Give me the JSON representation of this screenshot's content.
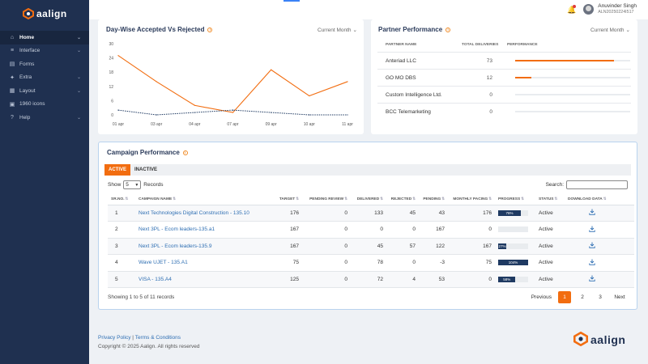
{
  "app": {
    "brand": "aalign"
  },
  "sidebar": {
    "items": [
      {
        "label": "Home",
        "icon": "home-icon",
        "chevron": true,
        "active": true
      },
      {
        "label": "Interface",
        "icon": "layers-icon",
        "chevron": true
      },
      {
        "label": "Forms",
        "icon": "form-icon",
        "chevron": false
      },
      {
        "label": "Extra",
        "icon": "extra-icon",
        "chevron": true
      },
      {
        "label": "Layout",
        "icon": "layout-icon",
        "chevron": true
      },
      {
        "label": "1960 icons",
        "icon": "grid-icon",
        "chevron": false
      },
      {
        "label": "Help",
        "icon": "help-icon",
        "chevron": true
      }
    ]
  },
  "user": {
    "name": "Anuvinder Singh",
    "id": "ALN20250224I517"
  },
  "dayChart": {
    "title": "Day-Wise Accepted Vs Rejected",
    "filter": "Current Month"
  },
  "partner": {
    "title": "Partner Performance",
    "filter": "Current Month",
    "headers": {
      "name": "PARTNER NAME",
      "deliveries": "TOTAL DELIVERIES",
      "performance": "PERFORMANCE"
    },
    "rows": [
      {
        "name": "Anteriad LLC",
        "deliveries": "73",
        "performance": 0.86
      },
      {
        "name": "GO MO DBS",
        "deliveries": "12",
        "performance": 0.14
      },
      {
        "name": "Custom Intelligence Ltd.",
        "deliveries": "0",
        "performance": 0
      },
      {
        "name": "BCC Telemarketing",
        "deliveries": "0",
        "performance": 0
      }
    ]
  },
  "campaign": {
    "title": "Campaign Performance",
    "tabs": [
      "ACTIVE",
      "INACTIVE"
    ],
    "show_label": "Show",
    "show_value": "5",
    "records_label": "Records",
    "search_label": "Search:",
    "headers": [
      "SR.NO.",
      "CAMPAIGN NAME",
      "TARGET",
      "PENDING REVIEW",
      "DELIVERED",
      "REJECTED",
      "PENDING",
      "MONTHLY PACING",
      "PROGRESS",
      "STATUS",
      "DOWNLOAD DATA"
    ],
    "rows": [
      {
        "sr": "1",
        "name": "Next Technologies Digital Construction - 135.10",
        "target": "176",
        "pending_review": "0",
        "delivered": "133",
        "rejected": "45",
        "pending": "43",
        "pacing": "176",
        "progress": 76,
        "progress_label": "76%",
        "status": "Active"
      },
      {
        "sr": "2",
        "name": "Next 3PL - Ecom leaders-135.a1",
        "target": "167",
        "pending_review": "0",
        "delivered": "0",
        "rejected": "0",
        "pending": "167",
        "pacing": "0",
        "progress": 0,
        "progress_label": "",
        "status": "Active"
      },
      {
        "sr": "3",
        "name": "Next 3PL - Ecom leaders-135.9",
        "target": "167",
        "pending_review": "0",
        "delivered": "45",
        "rejected": "57",
        "pending": "122",
        "pacing": "167",
        "progress": 27,
        "progress_label": "27%",
        "status": "Active"
      },
      {
        "sr": "4",
        "name": "Wave UJET - 135.A1",
        "target": "75",
        "pending_review": "0",
        "delivered": "78",
        "rejected": "0",
        "pending": "-3",
        "pacing": "75",
        "progress": 100,
        "progress_label": "104%",
        "status": "Active"
      },
      {
        "sr": "5",
        "name": "VISA - 135.A4",
        "target": "125",
        "pending_review": "0",
        "delivered": "72",
        "rejected": "4",
        "pending": "53",
        "pacing": "0",
        "progress": 58,
        "progress_label": "58%",
        "status": "Active"
      }
    ],
    "showing": "Showing 1 to 5 of 11 records",
    "pager": {
      "prev": "Previous",
      "pages": [
        "1",
        "2",
        "3"
      ],
      "next": "Next"
    }
  },
  "footer": {
    "privacy": "Privacy Policy",
    "sep": "|",
    "terms": "Terms & Conditions",
    "copyright": "Copyright © 2025 Aalign. All rights reserved"
  },
  "colors": {
    "accent": "#f26d10",
    "navy": "#1f3050",
    "link": "#2f6fb3"
  },
  "chart_data": {
    "type": "line",
    "categories": [
      "01 apr",
      "03 apr",
      "04 apr",
      "07 apr",
      "09 apr",
      "10 apr",
      "11 apr"
    ],
    "series": [
      {
        "values": [
          25,
          14,
          4,
          1,
          19,
          8,
          14
        ],
        "color": "#f26d10"
      },
      {
        "values": [
          2,
          0,
          1,
          2,
          1,
          0,
          0
        ],
        "color": "#1f3a62",
        "dashed": true
      }
    ],
    "ylim": [
      0,
      30
    ],
    "yticks": [
      0,
      6,
      12,
      18,
      24,
      30
    ],
    "grid": false
  }
}
